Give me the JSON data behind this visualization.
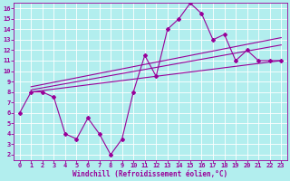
{
  "xlabel": "Windchill (Refroidissement éolien,°C)",
  "background_color": "#b2eeee",
  "grid_color": "#ffffff",
  "line_color": "#990099",
  "xlim": [
    -0.5,
    23.5
  ],
  "ylim": [
    1.5,
    16.5
  ],
  "yticks": [
    2,
    3,
    4,
    5,
    6,
    7,
    8,
    9,
    10,
    11,
    12,
    13,
    14,
    15,
    16
  ],
  "xticks": [
    0,
    1,
    2,
    3,
    4,
    5,
    6,
    7,
    8,
    9,
    10,
    11,
    12,
    13,
    14,
    15,
    16,
    17,
    18,
    19,
    20,
    21,
    22,
    23
  ],
  "jagged_x": [
    0,
    1,
    2,
    3,
    4,
    5,
    6,
    7,
    8,
    9,
    10,
    11,
    12,
    13,
    14,
    15,
    16,
    17,
    18,
    19,
    20,
    21,
    22,
    23
  ],
  "jagged_y": [
    6,
    8,
    8,
    7.5,
    4,
    3.5,
    5.5,
    4,
    2,
    3.5,
    8,
    11.5,
    9.5,
    14,
    15,
    16.5,
    15.5,
    13,
    13.5,
    11,
    12,
    11,
    11,
    11
  ],
  "line1_x": [
    1,
    23
  ],
  "line1_y": [
    8.0,
    11.0
  ],
  "line2_x": [
    1,
    23
  ],
  "line2_y": [
    8.2,
    12.5
  ],
  "line3_x": [
    1,
    23
  ],
  "line3_y": [
    8.5,
    13.2
  ],
  "marker": "D",
  "markersize": 2,
  "linewidth": 0.8,
  "tick_fontsize": 5,
  "xlabel_fontsize": 5.5
}
